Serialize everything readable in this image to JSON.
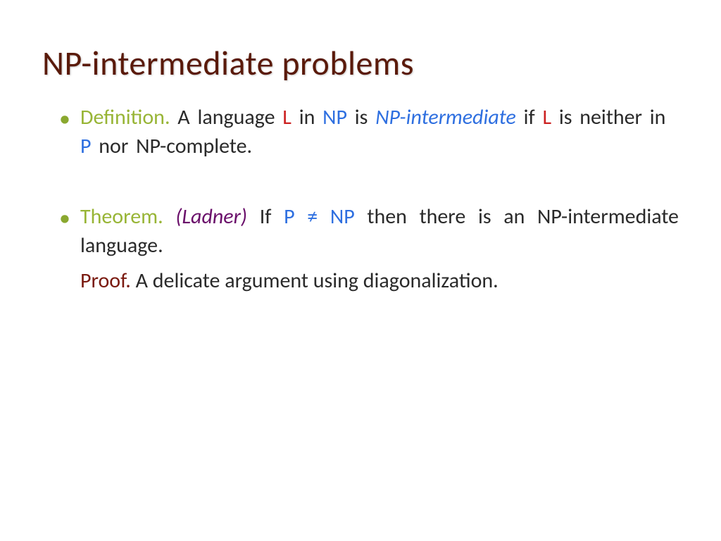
{
  "colors": {
    "title": "#5a1a0a",
    "bullet": "#8aa82f",
    "label_green": "#98b536",
    "red": "#cc2222",
    "blue": "#2e6fe0",
    "purple": "#6a0f6a",
    "proof_maroon": "#7a1a10",
    "body": "#2a2a2a",
    "background": "#ffffff"
  },
  "typography": {
    "title_fontsize": 48,
    "body_fontsize": 30,
    "title_weight": 400,
    "font_family": "Gill Sans"
  },
  "title": "NP-intermediate problems",
  "bullets": [
    {
      "label": "Definition.",
      "text_a": "  A language ",
      "L1": "L",
      "text_b": " in ",
      "NP1": "NP",
      "text_c": " is ",
      "npi": "NP-intermediate",
      "text_d": " if ",
      "L2": "L",
      "text_e": " is neither in ",
      "P1": "P",
      "text_f": " nor NP-complete."
    },
    {
      "label": "Theorem.",
      "attrib": " (Ladner) ",
      "text_a": " If ",
      "P1": "P",
      "neq": " ≠ ",
      "NP1": "NP",
      "text_b": " then there is an NP-intermediate language.",
      "proof_label": "Proof.",
      "proof_text": "  A delicate argument using diagonalization."
    }
  ]
}
